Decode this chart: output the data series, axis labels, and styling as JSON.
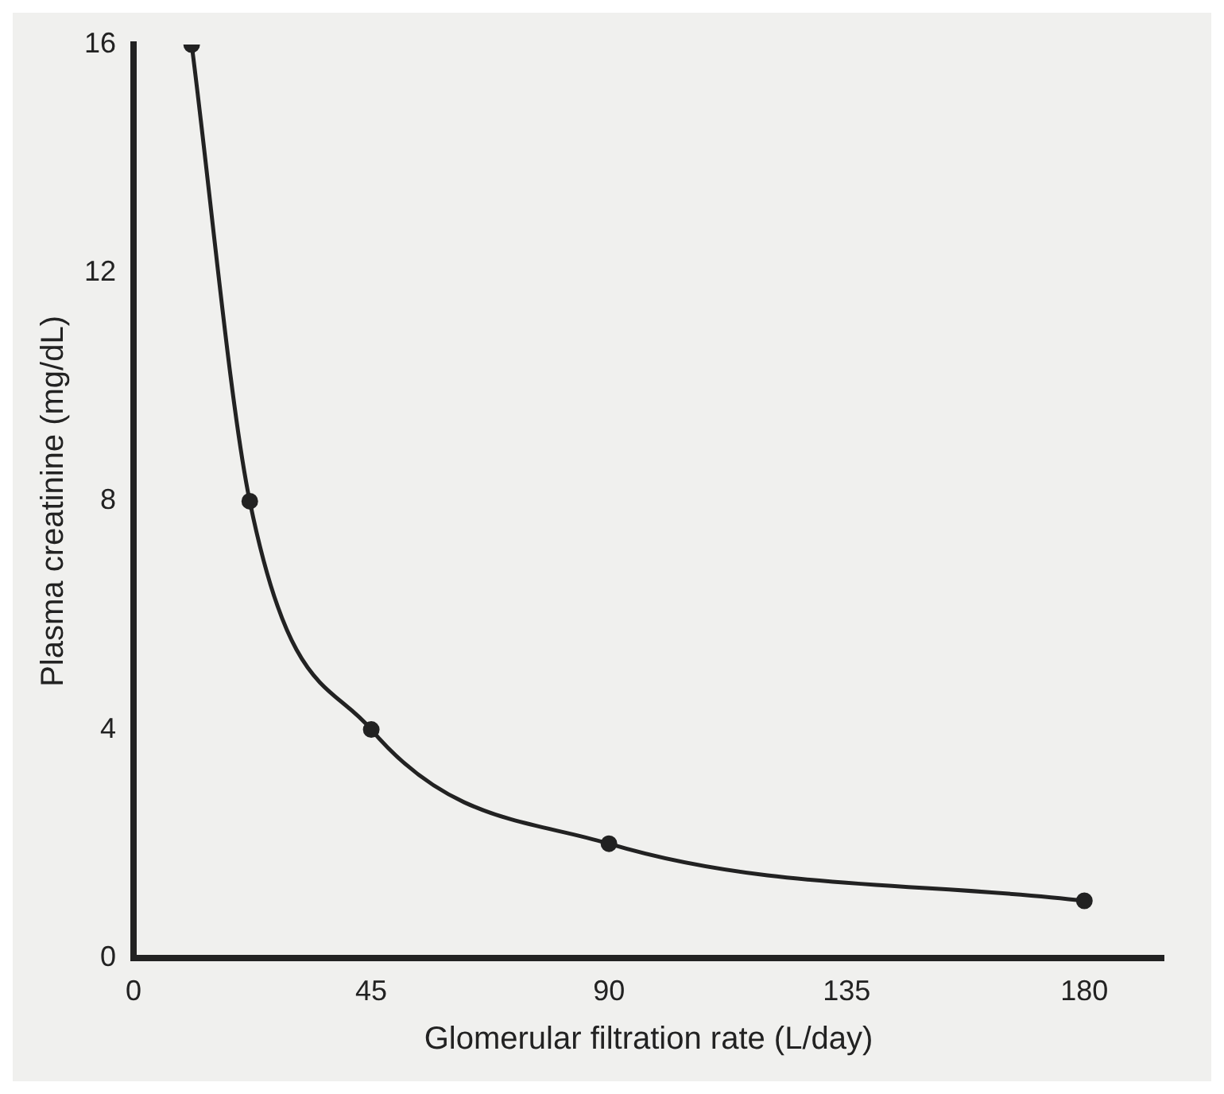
{
  "chart_data": {
    "type": "line",
    "xlabel": "Glomerular filtration rate (L/day)",
    "ylabel": "Plasma creatinine (mg/dL)",
    "x": [
      11,
      22,
      45,
      90,
      180
    ],
    "series": [
      {
        "color": "#222222",
        "values": [
          16,
          8,
          4,
          2,
          1
        ]
      }
    ],
    "xlim": [
      0,
      195
    ],
    "xticks": [
      0,
      45,
      90,
      135,
      180
    ],
    "ylim": [
      0,
      16
    ],
    "yticks": [
      0,
      4,
      8,
      12,
      16
    ],
    "grid": false,
    "legend": false,
    "marker": "circle",
    "line_style": "solid"
  }
}
